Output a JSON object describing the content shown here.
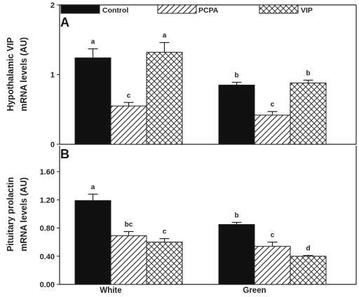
{
  "chart_data": [
    {
      "panel": "A",
      "type": "bar",
      "ylabel_line1": "Hypothalamic VIP",
      "ylabel_line2": "mRNA levels (AU)",
      "ylim": [
        0,
        2
      ],
      "yticks": [
        "0",
        "1",
        "2"
      ],
      "categories": [
        "White",
        "Green"
      ],
      "series": [
        {
          "name": "Control",
          "values": [
            1.24,
            0.85
          ],
          "errors": [
            0.13,
            0.04
          ],
          "letters": [
            "a",
            "b"
          ]
        },
        {
          "name": "PCPA",
          "values": [
            0.55,
            0.42
          ],
          "errors": [
            0.05,
            0.05
          ],
          "letters": [
            "c",
            "c"
          ]
        },
        {
          "name": "VIP",
          "values": [
            1.32,
            0.88
          ],
          "errors": [
            0.14,
            0.04
          ],
          "letters": [
            "a",
            "b"
          ]
        }
      ]
    },
    {
      "panel": "B",
      "type": "bar",
      "ylabel_line1": "Pituitary prolactin",
      "ylabel_line2": "mRNA levels (AU)",
      "ylim": [
        0,
        1.6
      ],
      "yticks": [
        "0.00",
        "0.40",
        "0.80",
        "1.20",
        "1.60"
      ],
      "categories": [
        "White",
        "Green"
      ],
      "series": [
        {
          "name": "Control",
          "values": [
            1.19,
            0.85
          ],
          "errors": [
            0.09,
            0.03
          ],
          "letters": [
            "a",
            "b"
          ]
        },
        {
          "name": "PCPA",
          "values": [
            0.69,
            0.54
          ],
          "errors": [
            0.06,
            0.06
          ],
          "letters": [
            "bc",
            "c"
          ]
        },
        {
          "name": "VIP",
          "values": [
            0.6,
            0.4
          ],
          "errors": [
            0.05,
            0.01
          ],
          "letters": [
            "c",
            "d"
          ]
        }
      ]
    }
  ],
  "legend": [
    "Control",
    "PCPA",
    "VIP"
  ],
  "fills": {
    "Control": "solid",
    "PCPA": "diagonal-hatch",
    "VIP": "cross-hatch"
  },
  "colors": {
    "bar_solid": "#111111",
    "bar_outline": "#222222",
    "background": "#ffffff"
  }
}
